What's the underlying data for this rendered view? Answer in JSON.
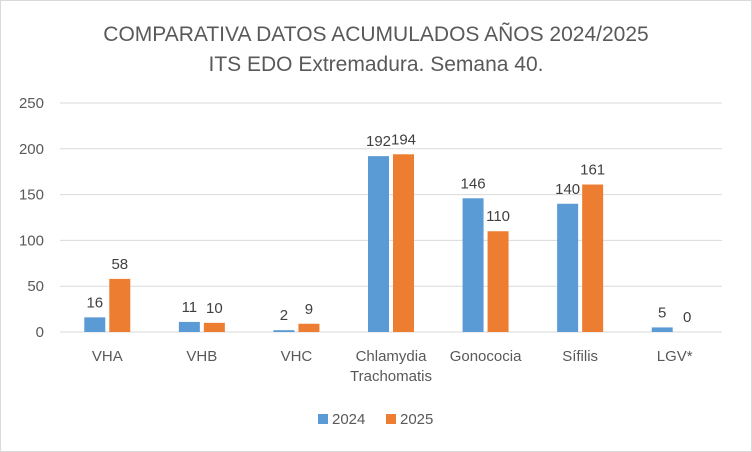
{
  "chart_data": {
    "type": "bar",
    "title": "COMPARATIVA DATOS ACUMULADOS AÑOS 2024/2025",
    "subtitle": "ITS EDO Extremadura. Semana 40.",
    "categories": [
      [
        "VHA"
      ],
      [
        "VHB"
      ],
      [
        "VHC"
      ],
      [
        "Chlamydia",
        "Trachomatis"
      ],
      [
        "Gonococia"
      ],
      [
        "Sífilis"
      ],
      [
        "LGV*"
      ]
    ],
    "series": [
      {
        "name": "2024",
        "color": "#5b9bd5",
        "values": [
          16,
          11,
          2,
          192,
          146,
          140,
          5
        ]
      },
      {
        "name": "2025",
        "color": "#ed7d31",
        "values": [
          58,
          10,
          9,
          194,
          110,
          161,
          0
        ]
      }
    ],
    "ylim": [
      0,
      250
    ],
    "yticks": [
      0,
      50,
      100,
      150,
      200,
      250
    ],
    "grid": true,
    "legend": "bottom"
  }
}
